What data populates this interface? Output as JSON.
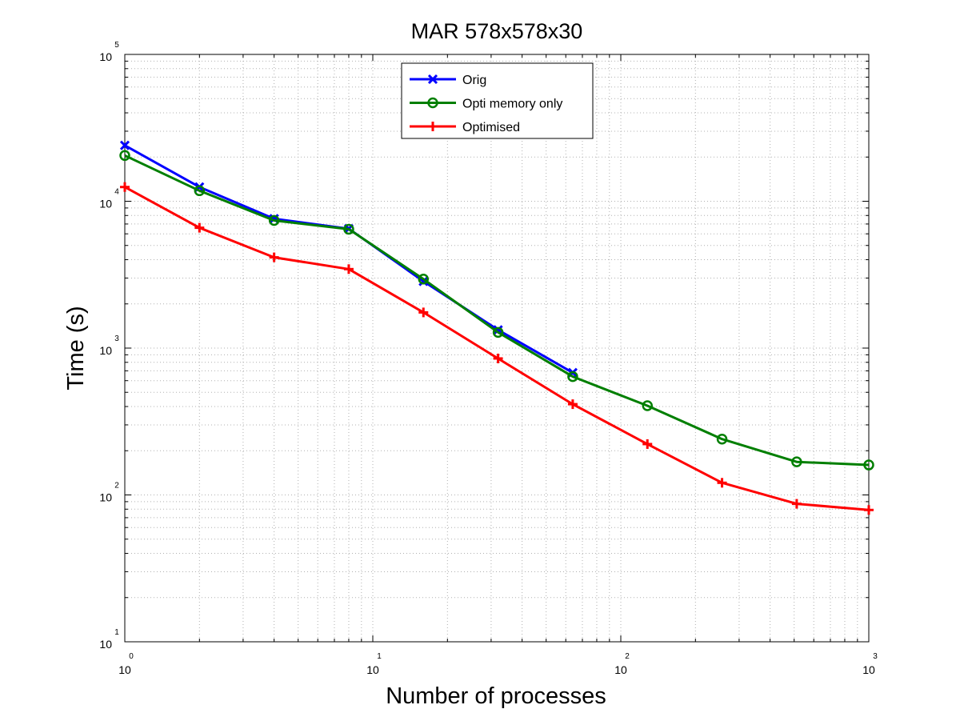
{
  "chart_data": {
    "type": "line",
    "title": "MAR 578x578x30",
    "xlabel": "Number of processes",
    "ylabel": "Time (s)",
    "xscale": "log",
    "yscale": "log",
    "xlim": [
      1,
      1000
    ],
    "ylim": [
      10,
      100000
    ],
    "grid": true,
    "legend_position": "top-center",
    "x_ticks": [
      {
        "base": "10",
        "exp": "0"
      },
      {
        "base": "10",
        "exp": "1"
      },
      {
        "base": "10",
        "exp": "2"
      },
      {
        "base": "10",
        "exp": "3"
      }
    ],
    "y_ticks": [
      {
        "base": "10",
        "exp": "1"
      },
      {
        "base": "10",
        "exp": "2"
      },
      {
        "base": "10",
        "exp": "3"
      },
      {
        "base": "10",
        "exp": "4"
      },
      {
        "base": "10",
        "exp": "5"
      }
    ],
    "series": [
      {
        "name": "Orig",
        "color": "#0000ff",
        "marker": "x",
        "x": [
          1,
          2,
          4,
          8,
          16,
          32,
          64
        ],
        "y": [
          24000,
          12500,
          7600,
          6500,
          2850,
          1330,
          680
        ]
      },
      {
        "name": "Opti memory only",
        "color": "#007f00",
        "marker": "o",
        "x": [
          1,
          2,
          4,
          8,
          16,
          32,
          64,
          128,
          256,
          512,
          1000
        ],
        "y": [
          20500,
          11800,
          7400,
          6450,
          2950,
          1280,
          640,
          405,
          240,
          168,
          160
        ]
      },
      {
        "name": "Optimised",
        "color": "#ff0000",
        "marker": "+",
        "x": [
          1,
          2,
          4,
          8,
          16,
          32,
          64,
          128,
          256,
          512,
          1000
        ],
        "y": [
          12500,
          6600,
          4150,
          3450,
          1750,
          850,
          415,
          222,
          121,
          87,
          79
        ]
      }
    ]
  }
}
